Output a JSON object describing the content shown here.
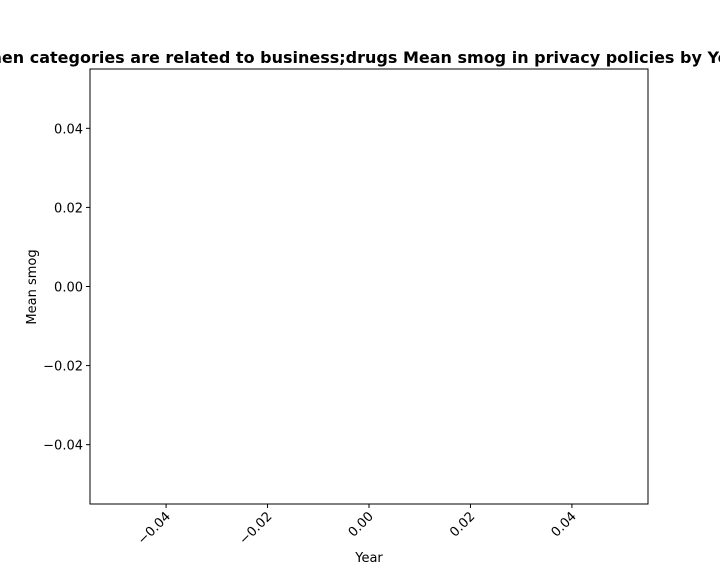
{
  "chart_data": {
    "type": "line",
    "title": "When categories are related to business;drugs Mean smog in privacy policies by Year",
    "xlabel": "Year",
    "ylabel": "Mean smog",
    "xlim": [
      -0.055,
      0.055
    ],
    "ylim": [
      -0.055,
      0.055
    ],
    "x_ticks": [
      -0.04,
      -0.02,
      0.0,
      0.02,
      0.04
    ],
    "x_tick_labels": [
      "−0.04",
      "−0.02",
      "0.00",
      "0.02",
      "0.04"
    ],
    "y_ticks": [
      0.04,
      0.02,
      0.0,
      -0.02,
      -0.04
    ],
    "y_tick_labels": [
      "0.04",
      "0.02",
      "0.00",
      "−0.02",
      "−0.04"
    ],
    "series": [],
    "grid": false,
    "legend": "none"
  }
}
